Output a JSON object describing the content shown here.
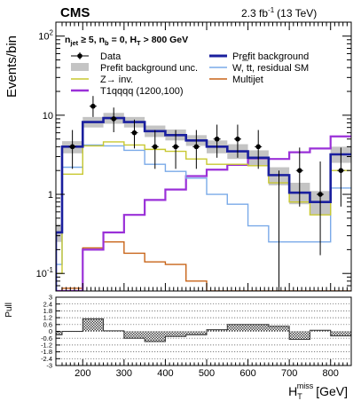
{
  "header": {
    "experiment": "CMS",
    "lumi": "2.3 fb",
    "lumi_exp": "-1",
    "energy": "(13 TeV)",
    "selection": {
      "njet_label": "n",
      "njet_sub": "jet",
      "njet_cut": "≥ 5,",
      "nb_label": "n",
      "nb_sub": "b",
      "nb_cut": "= 0,",
      "ht_label": "H",
      "ht_sub": "T",
      "ht_cut": "> 800 GeV"
    }
  },
  "colors": {
    "prefit": "#1a1f9e",
    "unc_band": "#c4c4c4",
    "zinv": "#c8c830",
    "wtt": "#7aaae8",
    "signal": "#9a30d8",
    "multijet": "#c86418",
    "data": "#000000"
  },
  "chart_data": [
    {
      "type": "line",
      "name": "main",
      "ylabel": "Events/bin",
      "ylog": true,
      "ylim": [
        0.06,
        150
      ],
      "xlim": [
        135,
        850
      ],
      "bin_edges": [
        135,
        150,
        200,
        250,
        300,
        350,
        400,
        450,
        500,
        550,
        600,
        650,
        700,
        750,
        800,
        850
      ],
      "y_ticks": [
        {
          "value": 0.1,
          "base": "10",
          "exp": "-1"
        },
        {
          "value": 1,
          "label": "1"
        },
        {
          "value": 10,
          "label": "10"
        },
        {
          "value": 100,
          "base": "10",
          "exp": "2"
        }
      ],
      "legend": [
        {
          "key": "data",
          "label": "Data",
          "style": "marker"
        },
        {
          "key": "prefit",
          "label": "Prefit background",
          "style": "line"
        },
        {
          "key": "unc_band",
          "label": "Prefit background unc.",
          "style": "box"
        },
        {
          "key": "wtt",
          "label": "W, tt, residual SM",
          "style": "line"
        },
        {
          "key": "zinv",
          "label": "Z→ inv.",
          "style": "line"
        },
        {
          "key": "multijet",
          "label": "Multijet",
          "style": "line"
        },
        {
          "key": "signal",
          "label": "T1qqqq (1200,100)",
          "style": "line"
        }
      ],
      "series": [
        {
          "name": "Prefit background",
          "color_key": "prefit",
          "values": [
            0.33,
            4.0,
            8.2,
            9.2,
            8.2,
            6.3,
            5.6,
            4.8,
            4.0,
            3.5,
            2.9,
            1.75,
            1.05,
            0.8,
            3.2
          ]
        },
        {
          "name": "Prefit background unc.",
          "color_key": "unc_band",
          "low": [
            0.25,
            3.3,
            7.0,
            7.8,
            7.0,
            5.3,
            4.8,
            4.1,
            3.3,
            2.8,
            2.3,
            1.3,
            0.75,
            0.55,
            2.5
          ],
          "high": [
            0.42,
            4.7,
            9.5,
            10.7,
            9.5,
            7.4,
            6.6,
            5.6,
            4.8,
            4.3,
            3.6,
            2.2,
            1.4,
            1.1,
            4.0
          ]
        },
        {
          "name": "W, tt, residual SM",
          "color_key": "wtt",
          "values": [
            0.13,
            2.2,
            4.2,
            4.1,
            3.6,
            2.4,
            1.95,
            1.6,
            1.0,
            0.75,
            0.4,
            0.25,
            0.25,
            0.25,
            1.2
          ]
        },
        {
          "name": "Z→ inv.",
          "color_key": "zinv",
          "values": [
            0.1,
            1.8,
            4.1,
            4.6,
            4.2,
            3.7,
            3.5,
            2.8,
            2.4,
            2.4,
            2.3,
            1.4,
            0.8,
            0.55,
            2.0
          ]
        },
        {
          "name": "Multijet",
          "color_key": "multijet",
          "values": [
            0.06,
            0.065,
            0.21,
            0.25,
            0.18,
            0.14,
            0.13,
            0.08,
            0.06,
            0.06,
            0.06,
            0.06,
            0.06,
            0.06,
            0.06
          ]
        },
        {
          "name": "T1qqqq (1200,100)",
          "color_key": "signal",
          "values": [
            0.06,
            0.06,
            0.2,
            0.33,
            0.55,
            0.85,
            1.15,
            1.7,
            2.05,
            2.35,
            2.85,
            2.8,
            3.4,
            3.8,
            5.4
          ]
        }
      ],
      "data_points": [
        {
          "x": 175,
          "y": 4.0,
          "lo": 2.1,
          "hi": 6.5
        },
        {
          "x": 225,
          "y": 13.0,
          "lo": 9.5,
          "hi": 17.5
        },
        {
          "x": 275,
          "y": 9.0,
          "lo": 6.1,
          "hi": 12.5
        },
        {
          "x": 325,
          "y": 6.0,
          "lo": 3.8,
          "hi": 8.8
        },
        {
          "x": 375,
          "y": 4.0,
          "lo": 2.1,
          "hi": 6.5
        },
        {
          "x": 425,
          "y": 4.0,
          "lo": 2.1,
          "hi": 6.5
        },
        {
          "x": 475,
          "y": 4.0,
          "lo": 2.1,
          "hi": 6.5
        },
        {
          "x": 525,
          "y": 5.0,
          "lo": 2.9,
          "hi": 7.6
        },
        {
          "x": 575,
          "y": 5.0,
          "lo": 2.9,
          "hi": 7.6
        },
        {
          "x": 625,
          "y": 4.0,
          "lo": 2.1,
          "hi": 6.5
        },
        {
          "x": 675,
          "y": 0.06,
          "lo": 0.06,
          "hi": 2.0
        },
        {
          "x": 725,
          "y": 2.0,
          "lo": 0.7,
          "hi": 3.9
        },
        {
          "x": 775,
          "y": 1.0,
          "lo": 0.17,
          "hi": 2.6
        },
        {
          "x": 825,
          "y": 2.0,
          "lo": 0.7,
          "hi": 3.9
        }
      ]
    },
    {
      "type": "bar",
      "name": "pull",
      "ylabel": "Pull",
      "ylim": [
        -3,
        3
      ],
      "xlim": [
        135,
        850
      ],
      "bin_edges": [
        135,
        150,
        200,
        250,
        300,
        350,
        400,
        450,
        500,
        550,
        600,
        650,
        700,
        750,
        800,
        850
      ],
      "values": [
        -0.3,
        0.0,
        1.1,
        0.05,
        -0.6,
        -0.9,
        -0.45,
        -0.3,
        0.15,
        0.6,
        0.6,
        0.45,
        -0.7,
        0.1,
        -0.4
      ],
      "y_tick_labels": [
        "3",
        "2.4",
        "1.8",
        "1.2",
        "0.6",
        "0",
        "-0.6",
        "-1.2",
        "-1.8",
        "-2.4",
        "-3"
      ],
      "y_tick_values": [
        3,
        2.4,
        1.8,
        1.2,
        0.6,
        0,
        -0.6,
        -1.2,
        -1.8,
        -2.4,
        -3
      ],
      "x_ticks": [
        200,
        300,
        400,
        500,
        600,
        700,
        800
      ],
      "x_tick_labels": [
        "200",
        "300",
        "400",
        "500",
        "600",
        "700",
        "800"
      ],
      "xlabel_main": "H",
      "xlabel_sub": "T",
      "xlabel_sup": "miss",
      "xlabel_unit": "[GeV]",
      "grid": "dotted horizontal"
    }
  ]
}
